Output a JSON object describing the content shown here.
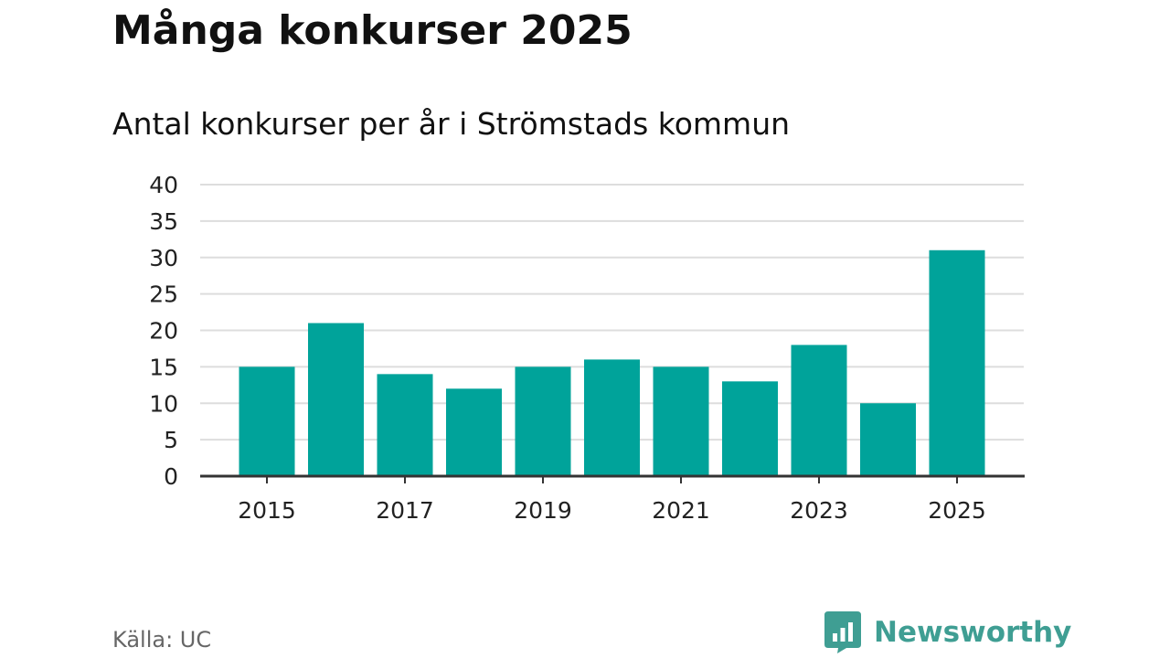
{
  "title": "Många konkurser 2025",
  "subtitle": "Antal konkurser per år i Strömstads kommun",
  "source": "Källa: UC",
  "logo": {
    "text": "Newsworthy",
    "icon": "newsworthy-logo-icon",
    "color": "#3f9e93"
  },
  "colors": {
    "bar": "#00a39a",
    "grid": "#dddddd",
    "axis": "#333333",
    "text": "#111111",
    "muted": "#666666"
  },
  "chart_data": {
    "type": "bar",
    "title": "Många konkurser 2025",
    "subtitle": "Antal konkurser per år i Strömstads kommun",
    "xlabel": "",
    "ylabel": "",
    "categories": [
      "2015",
      "2016",
      "2017",
      "2018",
      "2019",
      "2020",
      "2021",
      "2022",
      "2023",
      "2024",
      "2025"
    ],
    "values": [
      15,
      21,
      14,
      12,
      15,
      16,
      15,
      13,
      18,
      10,
      31
    ],
    "ylim": [
      0,
      40
    ],
    "yticks": [
      "0",
      "5",
      "10",
      "15",
      "20",
      "25",
      "30",
      "35",
      "40"
    ],
    "xtick_labels": [
      "2015",
      "2017",
      "2019",
      "2021",
      "2023",
      "2025"
    ],
    "grid": true,
    "legend": "none"
  }
}
